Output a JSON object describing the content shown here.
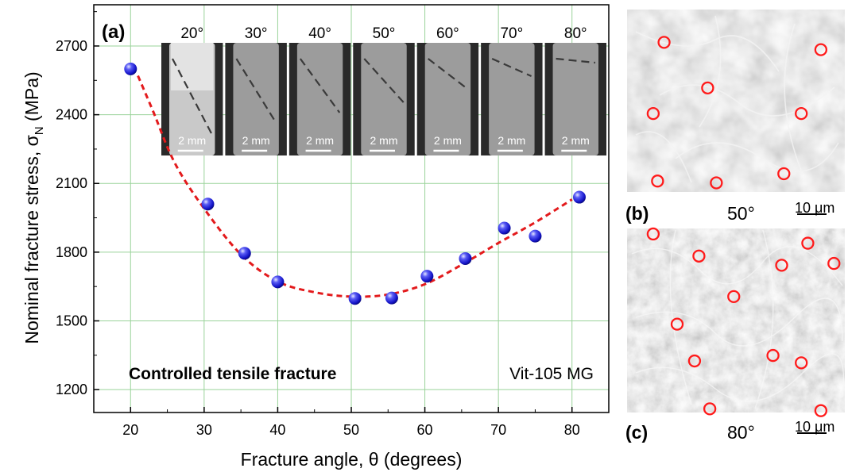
{
  "chart_data": {
    "type": "scatter",
    "panel_label": "(a)",
    "xlabel_main": "Fracture angle, ",
    "xlabel_symbol": "θ",
    "xlabel_unit": " (degrees)",
    "ylabel_main": "Nominal fracture stress, ",
    "ylabel_symbol": "σ",
    "ylabel_subscript": "N",
    "ylabel_unit": " (MPa)",
    "xlim": [
      15,
      85
    ],
    "ylim": [
      1100,
      2880
    ],
    "x_ticks": [
      20,
      30,
      40,
      50,
      60,
      70,
      80
    ],
    "x_tick_labels": [
      "20",
      "30",
      "40",
      "50",
      "60",
      "70",
      "80"
    ],
    "y_ticks": [
      1200,
      1500,
      1800,
      2100,
      2400,
      2700
    ],
    "y_tick_labels": [
      "1200",
      "1500",
      "1800",
      "2100",
      "2400",
      "2700"
    ],
    "grid": true,
    "points": [
      {
        "x": 20,
        "y": 2600
      },
      {
        "x": 30.5,
        "y": 2010
      },
      {
        "x": 35.5,
        "y": 1795
      },
      {
        "x": 40,
        "y": 1670
      },
      {
        "x": 50.5,
        "y": 1598
      },
      {
        "x": 55.5,
        "y": 1600
      },
      {
        "x": 60.3,
        "y": 1695
      },
      {
        "x": 65.5,
        "y": 1772
      },
      {
        "x": 70.8,
        "y": 1905
      },
      {
        "x": 75,
        "y": 1870
      },
      {
        "x": 81,
        "y": 2040
      }
    ],
    "fit_curve": [
      [
        21,
        2570
      ],
      [
        23,
        2420
      ],
      [
        26,
        2190
      ],
      [
        30,
        1990
      ],
      [
        35,
        1790
      ],
      [
        40,
        1672
      ],
      [
        45,
        1625
      ],
      [
        50,
        1606
      ],
      [
        55,
        1615
      ],
      [
        60,
        1660
      ],
      [
        65,
        1745
      ],
      [
        70,
        1840
      ],
      [
        75,
        1930
      ],
      [
        80,
        2030
      ]
    ],
    "fit_curve_color": "#e31a1c",
    "marker_color": "#1010cc",
    "annotation_left": "Controlled tensile fracture",
    "annotation_right": "Vit-105 MG",
    "inset": {
      "angles": [
        "20°",
        "30°",
        "40°",
        "50°",
        "60°",
        "70°",
        "80°"
      ],
      "scale_label": "2 mm"
    }
  },
  "micrographs": [
    {
      "label": "(b)",
      "angle": "50°",
      "scale_label": "10 μm",
      "circles": [
        [
          0.17,
          0.18
        ],
        [
          0.89,
          0.22
        ],
        [
          0.37,
          0.43
        ],
        [
          0.12,
          0.57
        ],
        [
          0.8,
          0.57
        ],
        [
          0.14,
          0.94
        ],
        [
          0.41,
          0.95
        ],
        [
          0.72,
          0.9
        ]
      ]
    },
    {
      "label": "(c)",
      "angle": "80°",
      "scale_label": "10 μm",
      "circles": [
        [
          0.12,
          0.03
        ],
        [
          0.33,
          0.15
        ],
        [
          0.83,
          0.08
        ],
        [
          0.71,
          0.2
        ],
        [
          0.95,
          0.19
        ],
        [
          0.49,
          0.37
        ],
        [
          0.23,
          0.52
        ],
        [
          0.31,
          0.72
        ],
        [
          0.67,
          0.69
        ],
        [
          0.8,
          0.73
        ],
        [
          0.38,
          0.98
        ],
        [
          0.89,
          0.99
        ]
      ]
    }
  ]
}
